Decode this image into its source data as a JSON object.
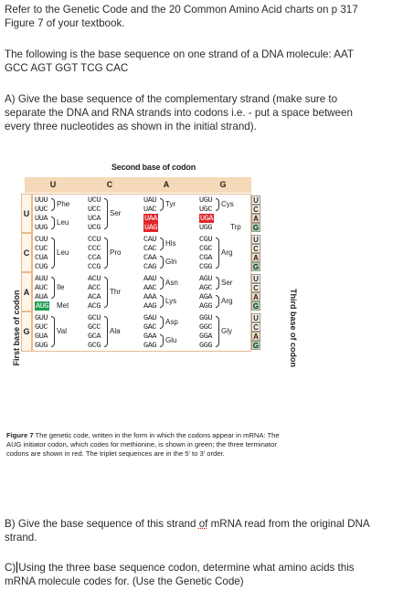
{
  "intro": {
    "line1": "Refer to the Genetic Code and the 20 Common Amino Acid charts on p 317",
    "line2": "Figure 7 of your textbook."
  },
  "sequence_text": {
    "line1": "The following is the base sequence on one strand of a DNA molecule: AAT",
    "line2": "GCC AGT GGT TCG CAC"
  },
  "question_a": {
    "line1": "A) Give the base sequence of the complementary strand (make sure to",
    "line2": "separate the DNA and RNA strands into codons i.e. - put a space between",
    "line3": "every three nucleotides as shown in the initial strand)."
  },
  "figure": {
    "second_base_title": "Second base of codon",
    "first_base_title": "First base of codon",
    "third_base_title": "Third base of codon",
    "headers": [
      "U",
      "C",
      "A",
      "G"
    ],
    "first_bases": [
      "U",
      "C",
      "A",
      "G"
    ],
    "third_bases": [
      "U",
      "C",
      "A",
      "G"
    ],
    "rows": [
      [
        [
          "UUU",
          "UUC",
          "UUA",
          "UUG"
        ],
        [
          "UCU",
          "UCC",
          "UCA",
          "UCG"
        ],
        [
          "UAU",
          "UAC",
          "UAA",
          "UAG"
        ],
        [
          "UGU",
          "UGC",
          "UGA",
          "UGG"
        ]
      ],
      [
        [
          "CUU",
          "CUC",
          "CUA",
          "CUG"
        ],
        [
          "CCU",
          "CCC",
          "CCA",
          "CCG"
        ],
        [
          "CAU",
          "CAC",
          "CAA",
          "CAG"
        ],
        [
          "CGU",
          "CGC",
          "CGA",
          "CGG"
        ]
      ],
      [
        [
          "AUU",
          "AUC",
          "AUA",
          "AUG"
        ],
        [
          "ACU",
          "ACC",
          "ACA",
          "ACG"
        ],
        [
          "AAU",
          "AAC",
          "AAA",
          "AAG"
        ],
        [
          "AGU",
          "AGC",
          "AGA",
          "AGG"
        ]
      ],
      [
        [
          "GUU",
          "GUC",
          "GUA",
          "GUG"
        ],
        [
          "GCU",
          "GCC",
          "GCA",
          "GCG"
        ],
        [
          "GAU",
          "GAC",
          "GAA",
          "GAG"
        ],
        [
          "GGU",
          "GGC",
          "GGA",
          "GGG"
        ]
      ]
    ],
    "amino_acids": {
      "phe": "Phe",
      "leu1": "Leu",
      "ser1": "Ser",
      "tyr": "Tyr",
      "cys": "Cys",
      "trp": "Trp",
      "leu2": "Leu",
      "pro": "Pro",
      "his": "His",
      "gln": "Gln",
      "arg1": "Arg",
      "ile": "Ile",
      "met": "Met",
      "thr": "Thr",
      "asn": "Asn",
      "lys": "Lys",
      "ser2": "Ser",
      "arg2": "Arg",
      "val": "Val",
      "ala": "Ala",
      "asp": "Asp",
      "glu": "Glu",
      "gly": "Gly"
    },
    "caption_label": "Figure 7",
    "caption_text": " The genetic code, written in the form in which the codons appear in mRNA: The AUG initiator codon, which codes for methionine, is shown in green; the three terminator codons are shown in red. The triplet sequences are in the 5′ to 3′ order.",
    "colors": {
      "stop": "#e0262b",
      "start": "#1e9e52",
      "border": "#e7b98e",
      "header_bg": "#f5d9b8"
    }
  },
  "question_b": {
    "line1_pre": "B) Give the base sequence of this strand ",
    "line1_of": "of",
    "line1_post": " mRNA read from the original DNA",
    "line2": "strand."
  },
  "question_c": {
    "line1_pre": "C)",
    "line1_post": "Using the three base sequence codon, determine what amino acids this",
    "line2": "mRNA molecule codes for. (Use the Genetic Code)"
  }
}
